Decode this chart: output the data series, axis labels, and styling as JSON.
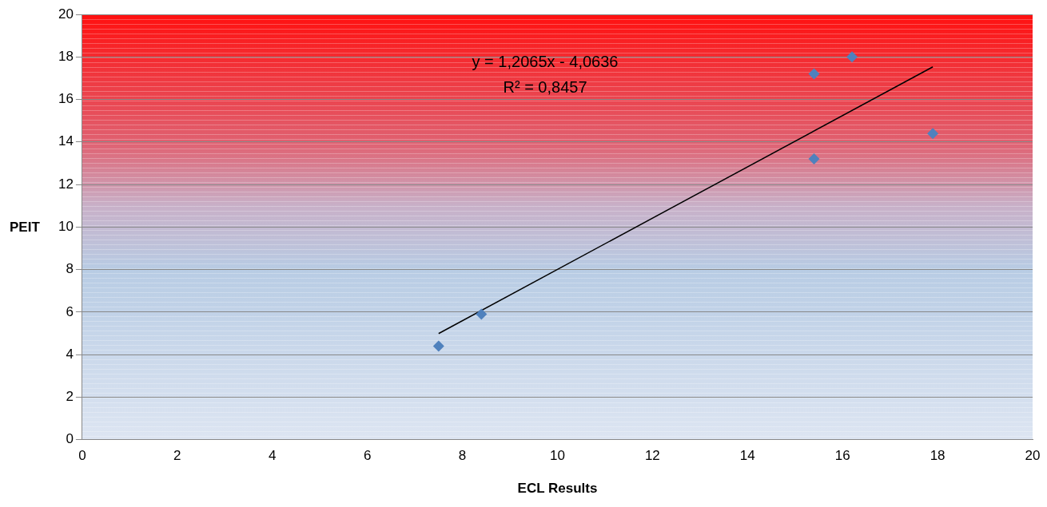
{
  "chart_data": {
    "type": "scatter",
    "xlabel": "ECL Results",
    "ylabel": "PEIT",
    "xlim": [
      0,
      20
    ],
    "xticks": [
      0,
      2,
      4,
      6,
      8,
      10,
      12,
      14,
      16,
      18,
      20
    ],
    "ylim": [
      0,
      20
    ],
    "yticks": [
      0,
      2,
      4,
      6,
      8,
      10,
      12,
      14,
      16,
      18,
      20
    ],
    "grid": "y",
    "legend": false,
    "marker": "diamond",
    "series": [
      {
        "color": "#4f81bd",
        "x": [
          7.5,
          8.4,
          15.4,
          15.4,
          16.2,
          17.9
        ],
        "values": [
          4.4,
          5.9,
          13.2,
          17.2,
          18,
          14.4
        ]
      },
      {
        "type": "line",
        "color": "#000000",
        "marker": "none",
        "x": [
          7.5,
          17.9
        ],
        "values": [
          4.99,
          17.53
        ]
      }
    ],
    "annotations": [
      "y = 1,2065x - 4,0636",
      "R² = 0,8457"
    ]
  }
}
